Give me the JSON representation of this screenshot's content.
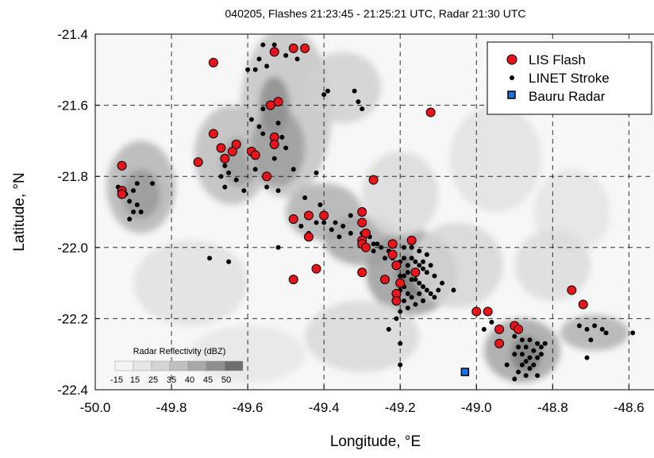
{
  "chart_data": {
    "type": "scatter",
    "title": "040205, Flashes 21:23:45 - 21:25:21 UTC, Radar 21:30 UTC",
    "xlabel": "Longitude, °E",
    "ylabel": "Latitude, °N",
    "xlim": [
      -50.0,
      -48.53
    ],
    "ylim": [
      -22.4,
      -21.4
    ],
    "xticks": [
      -50.0,
      -49.8,
      -49.6,
      -49.4,
      -49.2,
      -49.0,
      -48.8,
      -48.6
    ],
    "xtick_labels": [
      "-50.0",
      "-49.8",
      "-49.6",
      "-49.4",
      "-49.2",
      "-49.0",
      "-48.8",
      "-48.6"
    ],
    "yticks": [
      -21.4,
      -21.6,
      -21.8,
      -22.0,
      -22.2,
      -22.4
    ],
    "ytick_labels": [
      "-21.4",
      "-21.6",
      "-21.8",
      "-22.0",
      "-22.2",
      "-22.4"
    ],
    "grid": true,
    "legend_position": "top-right",
    "colors": {
      "lis_fill": "#e8141c",
      "lis_edge": "#000000",
      "linet": "#000000",
      "radar_fill": "#1a73e8",
      "radar_edge": "#000000",
      "grid": "#000000"
    },
    "series": [
      {
        "name": "LIS Flash",
        "marker": "circle",
        "points": [
          [
            -49.48,
            -21.44
          ],
          [
            -49.45,
            -21.44
          ],
          [
            -49.53,
            -21.45
          ],
          [
            -49.69,
            -21.48
          ],
          [
            -49.52,
            -21.59
          ],
          [
            -49.54,
            -21.6
          ],
          [
            -49.12,
            -21.62
          ],
          [
            -49.69,
            -21.68
          ],
          [
            -49.53,
            -21.69
          ],
          [
            -49.53,
            -21.71
          ],
          [
            -49.63,
            -21.71
          ],
          [
            -49.67,
            -21.72
          ],
          [
            -49.64,
            -21.73
          ],
          [
            -49.59,
            -21.73
          ],
          [
            -49.58,
            -21.74
          ],
          [
            -49.73,
            -21.76
          ],
          [
            -49.66,
            -21.75
          ],
          [
            -49.93,
            -21.77
          ],
          [
            -49.55,
            -21.8
          ],
          [
            -49.27,
            -21.81
          ],
          [
            -49.93,
            -21.84
          ],
          [
            -49.93,
            -21.85
          ],
          [
            -49.3,
            -21.9
          ],
          [
            -49.4,
            -21.91
          ],
          [
            -49.44,
            -21.91
          ],
          [
            -49.48,
            -21.92
          ],
          [
            -49.3,
            -21.93
          ],
          [
            -49.29,
            -21.96
          ],
          [
            -49.44,
            -21.97
          ],
          [
            -49.3,
            -21.98
          ],
          [
            -49.3,
            -21.99
          ],
          [
            -49.29,
            -22.0
          ],
          [
            -49.22,
            -21.99
          ],
          [
            -49.17,
            -21.98
          ],
          [
            -49.22,
            -22.02
          ],
          [
            -49.21,
            -22.05
          ],
          [
            -49.42,
            -22.06
          ],
          [
            -49.3,
            -22.07
          ],
          [
            -49.16,
            -22.07
          ],
          [
            -49.48,
            -22.09
          ],
          [
            -49.24,
            -22.09
          ],
          [
            -49.2,
            -22.1
          ],
          [
            -49.21,
            -22.13
          ],
          [
            -49.21,
            -22.15
          ],
          [
            -48.75,
            -22.12
          ],
          [
            -48.72,
            -22.16
          ],
          [
            -49.0,
            -22.18
          ],
          [
            -48.97,
            -22.18
          ],
          [
            -48.9,
            -22.22
          ],
          [
            -48.89,
            -22.23
          ],
          [
            -48.94,
            -22.23
          ],
          [
            -48.94,
            -22.27
          ]
        ]
      },
      {
        "name": "LINET Stroke",
        "marker": "dot",
        "points": [
          [
            -49.56,
            -21.43
          ],
          [
            -49.53,
            -21.43
          ],
          [
            -49.5,
            -21.46
          ],
          [
            -49.47,
            -21.47
          ],
          [
            -49.57,
            -21.47
          ],
          [
            -49.55,
            -21.49
          ],
          [
            -49.58,
            -21.5
          ],
          [
            -49.6,
            -21.5
          ],
          [
            -49.39,
            -21.56
          ],
          [
            -49.4,
            -21.57
          ],
          [
            -49.32,
            -21.56
          ],
          [
            -49.31,
            -21.59
          ],
          [
            -49.3,
            -21.61
          ],
          [
            -49.56,
            -21.61
          ],
          [
            -49.59,
            -21.64
          ],
          [
            -49.57,
            -21.66
          ],
          [
            -49.52,
            -21.65
          ],
          [
            -49.51,
            -21.69
          ],
          [
            -49.56,
            -21.68
          ],
          [
            -49.5,
            -21.72
          ],
          [
            -49.53,
            -21.75
          ],
          [
            -49.48,
            -21.78
          ],
          [
            -49.58,
            -21.78
          ],
          [
            -49.55,
            -21.83
          ],
          [
            -49.52,
            -21.84
          ],
          [
            -49.42,
            -21.79
          ],
          [
            -49.66,
            -21.77
          ],
          [
            -49.65,
            -21.79
          ],
          [
            -49.67,
            -21.8
          ],
          [
            -49.63,
            -21.81
          ],
          [
            -49.66,
            -21.83
          ],
          [
            -49.61,
            -21.84
          ],
          [
            -49.94,
            -21.83
          ],
          [
            -49.92,
            -21.85
          ],
          [
            -49.9,
            -21.84
          ],
          [
            -49.91,
            -21.87
          ],
          [
            -49.89,
            -21.88
          ],
          [
            -49.9,
            -21.9
          ],
          [
            -49.88,
            -21.9
          ],
          [
            -49.91,
            -21.92
          ],
          [
            -49.85,
            -21.82
          ],
          [
            -49.89,
            -21.82
          ],
          [
            -49.45,
            -21.86
          ],
          [
            -49.41,
            -21.88
          ],
          [
            -49.4,
            -21.93
          ],
          [
            -49.38,
            -21.95
          ],
          [
            -49.37,
            -21.93
          ],
          [
            -49.35,
            -21.94
          ],
          [
            -49.33,
            -21.91
          ],
          [
            -49.42,
            -21.93
          ],
          [
            -49.46,
            -21.94
          ],
          [
            -49.44,
            -21.96
          ],
          [
            -49.36,
            -21.97
          ],
          [
            -49.33,
            -21.96
          ],
          [
            -49.3,
            -21.96
          ],
          [
            -49.28,
            -21.97
          ],
          [
            -49.27,
            -21.99
          ],
          [
            -49.26,
            -21.99
          ],
          [
            -49.25,
            -22.0
          ],
          [
            -49.23,
            -22.01
          ],
          [
            -49.27,
            -22.01
          ],
          [
            -49.24,
            -22.03
          ],
          [
            -49.22,
            -22.03
          ],
          [
            -49.2,
            -22.04
          ],
          [
            -49.19,
            -22.03
          ],
          [
            -49.18,
            -22.05
          ],
          [
            -49.17,
            -22.03
          ],
          [
            -49.16,
            -22.04
          ],
          [
            -49.15,
            -22.05
          ],
          [
            -49.14,
            -22.06
          ],
          [
            -49.13,
            -22.07
          ],
          [
            -49.18,
            -22.07
          ],
          [
            -49.19,
            -22.08
          ],
          [
            -49.2,
            -22.08
          ],
          [
            -49.17,
            -22.09
          ],
          [
            -49.16,
            -22.09
          ],
          [
            -49.15,
            -22.1
          ],
          [
            -49.14,
            -22.11
          ],
          [
            -49.19,
            -22.11
          ],
          [
            -49.2,
            -22.12
          ],
          [
            -49.18,
            -22.13
          ],
          [
            -49.17,
            -22.14
          ],
          [
            -49.15,
            -22.13
          ],
          [
            -49.13,
            -22.12
          ],
          [
            -49.12,
            -22.13
          ],
          [
            -49.19,
            -22.15
          ],
          [
            -49.18,
            -22.17
          ],
          [
            -49.2,
            -22.18
          ],
          [
            -49.21,
            -22.2
          ],
          [
            -49.16,
            -22.16
          ],
          [
            -49.14,
            -22.15
          ],
          [
            -49.11,
            -22.14
          ],
          [
            -49.1,
            -22.12
          ],
          [
            -49.09,
            -22.1
          ],
          [
            -49.06,
            -22.12
          ],
          [
            -49.19,
            -22.0
          ],
          [
            -49.17,
            -22.0
          ],
          [
            -49.15,
            -22.01
          ],
          [
            -49.13,
            -22.02
          ],
          [
            -49.14,
            -22.04
          ],
          [
            -49.12,
            -22.05
          ],
          [
            -49.11,
            -22.08
          ],
          [
            -49.23,
            -22.23
          ],
          [
            -49.2,
            -22.27
          ],
          [
            -49.2,
            -22.33
          ],
          [
            -49.7,
            -22.03
          ],
          [
            -49.65,
            -22.04
          ],
          [
            -49.52,
            -22.0
          ],
          [
            -48.9,
            -22.25
          ],
          [
            -48.88,
            -22.26
          ],
          [
            -48.86,
            -22.26
          ],
          [
            -48.84,
            -22.27
          ],
          [
            -48.83,
            -22.28
          ],
          [
            -48.82,
            -22.27
          ],
          [
            -48.87,
            -22.28
          ],
          [
            -48.85,
            -22.29
          ],
          [
            -48.88,
            -22.3
          ],
          [
            -48.86,
            -22.31
          ],
          [
            -48.84,
            -22.31
          ],
          [
            -48.87,
            -22.32
          ],
          [
            -48.85,
            -22.33
          ],
          [
            -48.83,
            -22.3
          ],
          [
            -48.89,
            -22.28
          ],
          [
            -48.9,
            -22.3
          ],
          [
            -48.88,
            -22.33
          ],
          [
            -48.86,
            -22.34
          ],
          [
            -48.89,
            -22.35
          ],
          [
            -48.87,
            -22.36
          ],
          [
            -48.9,
            -22.37
          ],
          [
            -48.84,
            -22.36
          ],
          [
            -48.92,
            -22.33
          ],
          [
            -48.73,
            -22.22
          ],
          [
            -48.71,
            -22.23
          ],
          [
            -48.69,
            -22.22
          ],
          [
            -48.67,
            -22.23
          ],
          [
            -48.66,
            -22.24
          ],
          [
            -48.7,
            -22.26
          ],
          [
            -48.71,
            -22.31
          ],
          [
            -48.59,
            -22.24
          ],
          [
            -48.98,
            -22.23
          ],
          [
            -48.96,
            -22.21
          ]
        ]
      },
      {
        "name": "Bauru Radar",
        "marker": "square",
        "points": [
          [
            -49.03,
            -22.35
          ]
        ]
      }
    ],
    "reflectivity_legend": {
      "title": "Radar Reflectivity (dBZ)",
      "labels": [
        "-15",
        "15",
        "25",
        "35",
        "40",
        "45",
        "50"
      ],
      "shades": [
        "#f4f4f4",
        "#e6e6e6",
        "#d4d4d4",
        "#c0c0c0",
        "#a8a8a8",
        "#8e8e8e",
        "#6e6e6e"
      ]
    },
    "radar_cells": [
      {
        "lon": -49.88,
        "lat": -21.83,
        "rx": 0.09,
        "ry": 0.13,
        "shade": "#b4b4b4"
      },
      {
        "lon": -49.88,
        "lat": -21.85,
        "rx": 0.05,
        "ry": 0.07,
        "shade": "#9a9a9a"
      },
      {
        "lon": -49.64,
        "lat": -21.74,
        "rx": 0.1,
        "ry": 0.14,
        "shade": "#bdbdbd"
      },
      {
        "lon": -49.62,
        "lat": -21.76,
        "rx": 0.05,
        "ry": 0.07,
        "shade": "#a0a0a0"
      },
      {
        "lon": -49.5,
        "lat": -21.62,
        "rx": 0.12,
        "ry": 0.24,
        "shade": "#c4c4c4"
      },
      {
        "lon": -49.52,
        "lat": -21.72,
        "rx": 0.07,
        "ry": 0.11,
        "shade": "#9e9e9e"
      },
      {
        "lon": -49.53,
        "lat": -21.6,
        "rx": 0.04,
        "ry": 0.08,
        "shade": "#8e8e8e"
      },
      {
        "lon": -49.4,
        "lat": -21.9,
        "rx": 0.1,
        "ry": 0.08,
        "shade": "#b0b0b0"
      },
      {
        "lon": -49.3,
        "lat": -21.98,
        "rx": 0.1,
        "ry": 0.07,
        "shade": "#a6a6a6"
      },
      {
        "lon": -49.17,
        "lat": -22.07,
        "rx": 0.12,
        "ry": 0.12,
        "shade": "#9c9c9c"
      },
      {
        "lon": -49.16,
        "lat": -22.08,
        "rx": 0.05,
        "ry": 0.06,
        "shade": "#7c7c7c"
      },
      {
        "lon": -48.88,
        "lat": -22.29,
        "rx": 0.1,
        "ry": 0.09,
        "shade": "#a4a4a4"
      },
      {
        "lon": -48.87,
        "lat": -22.3,
        "rx": 0.04,
        "ry": 0.05,
        "shade": "#808080"
      },
      {
        "lon": -48.69,
        "lat": -22.24,
        "rx": 0.09,
        "ry": 0.05,
        "shade": "#b0b0b0"
      },
      {
        "lon": -49.35,
        "lat": -21.55,
        "rx": 0.1,
        "ry": 0.1,
        "shade": "#d0d0d0"
      },
      {
        "lon": -49.2,
        "lat": -21.85,
        "rx": 0.1,
        "ry": 0.12,
        "shade": "#dadada"
      },
      {
        "lon": -49.05,
        "lat": -22.05,
        "rx": 0.12,
        "ry": 0.12,
        "shade": "#d6d6d6"
      },
      {
        "lon": -49.3,
        "lat": -22.25,
        "rx": 0.15,
        "ry": 0.1,
        "shade": "#d8d8d8"
      },
      {
        "lon": -49.75,
        "lat": -22.1,
        "rx": 0.15,
        "ry": 0.12,
        "shade": "#e0e0e0"
      },
      {
        "lon": -48.95,
        "lat": -21.75,
        "rx": 0.12,
        "ry": 0.15,
        "shade": "#e2e2e2"
      },
      {
        "lon": -48.75,
        "lat": -21.9,
        "rx": 0.1,
        "ry": 0.12,
        "shade": "#e4e4e4"
      },
      {
        "lon": -49.6,
        "lat": -22.3,
        "rx": 0.15,
        "ry": 0.08,
        "shade": "#e6e6e6"
      },
      {
        "lon": -48.8,
        "lat": -22.05,
        "rx": 0.1,
        "ry": 0.1,
        "shade": "#dcdcdc"
      }
    ]
  }
}
